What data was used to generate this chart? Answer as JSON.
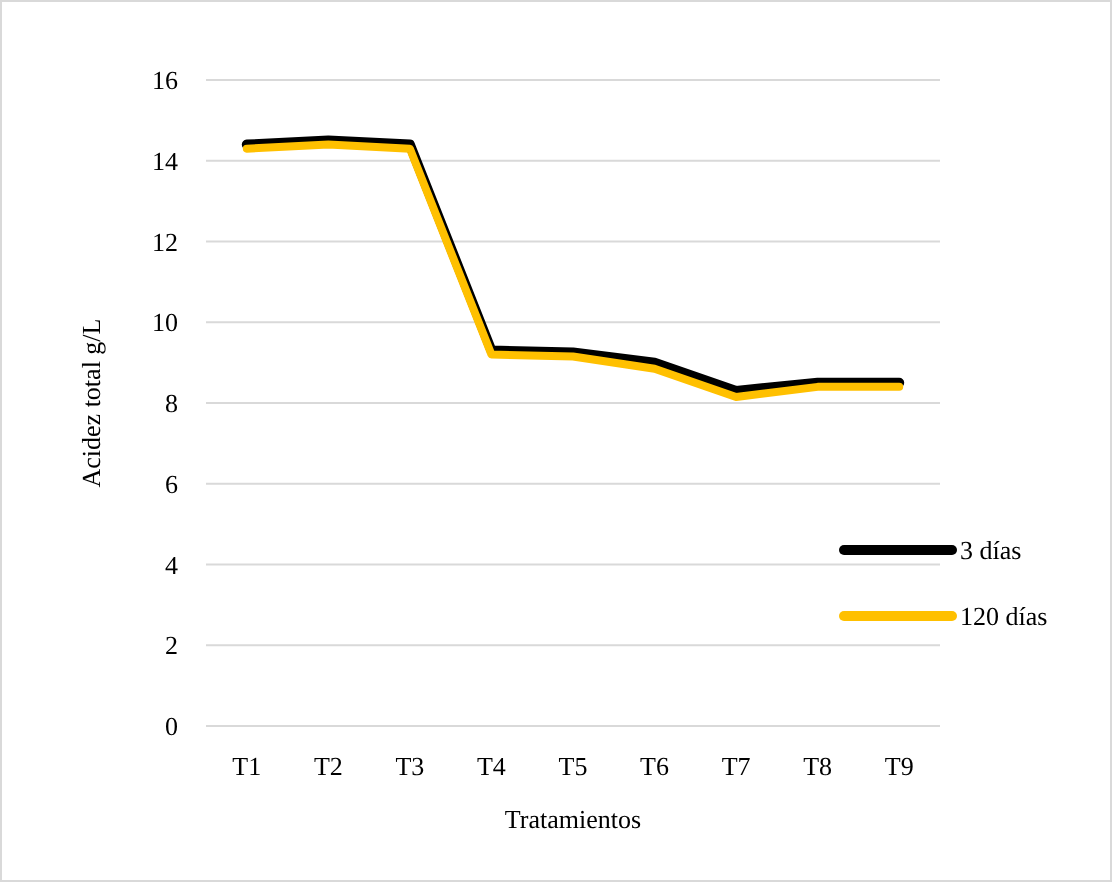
{
  "chart_data": {
    "type": "line",
    "xlabel": "Tratamientos",
    "ylabel": "Acidez total g/L",
    "categories": [
      "T1",
      "T2",
      "T3",
      "T4",
      "T5",
      "T6",
      "T7",
      "T8",
      "T9"
    ],
    "series": [
      {
        "name": "3 días",
        "color": "#000000",
        "values": [
          14.4,
          14.5,
          14.4,
          9.3,
          9.25,
          9.0,
          8.3,
          8.5,
          8.5
        ]
      },
      {
        "name": "120 días",
        "color": "#ffc000",
        "values": [
          14.3,
          14.4,
          14.3,
          9.2,
          9.15,
          8.85,
          8.15,
          8.4,
          8.4
        ]
      }
    ],
    "ylim": [
      0,
      16
    ],
    "yticks": [
      0,
      2,
      4,
      6,
      8,
      10,
      12,
      14,
      16
    ],
    "grid": "y",
    "legend": "right",
    "marker": "none",
    "line_style": "solid"
  }
}
